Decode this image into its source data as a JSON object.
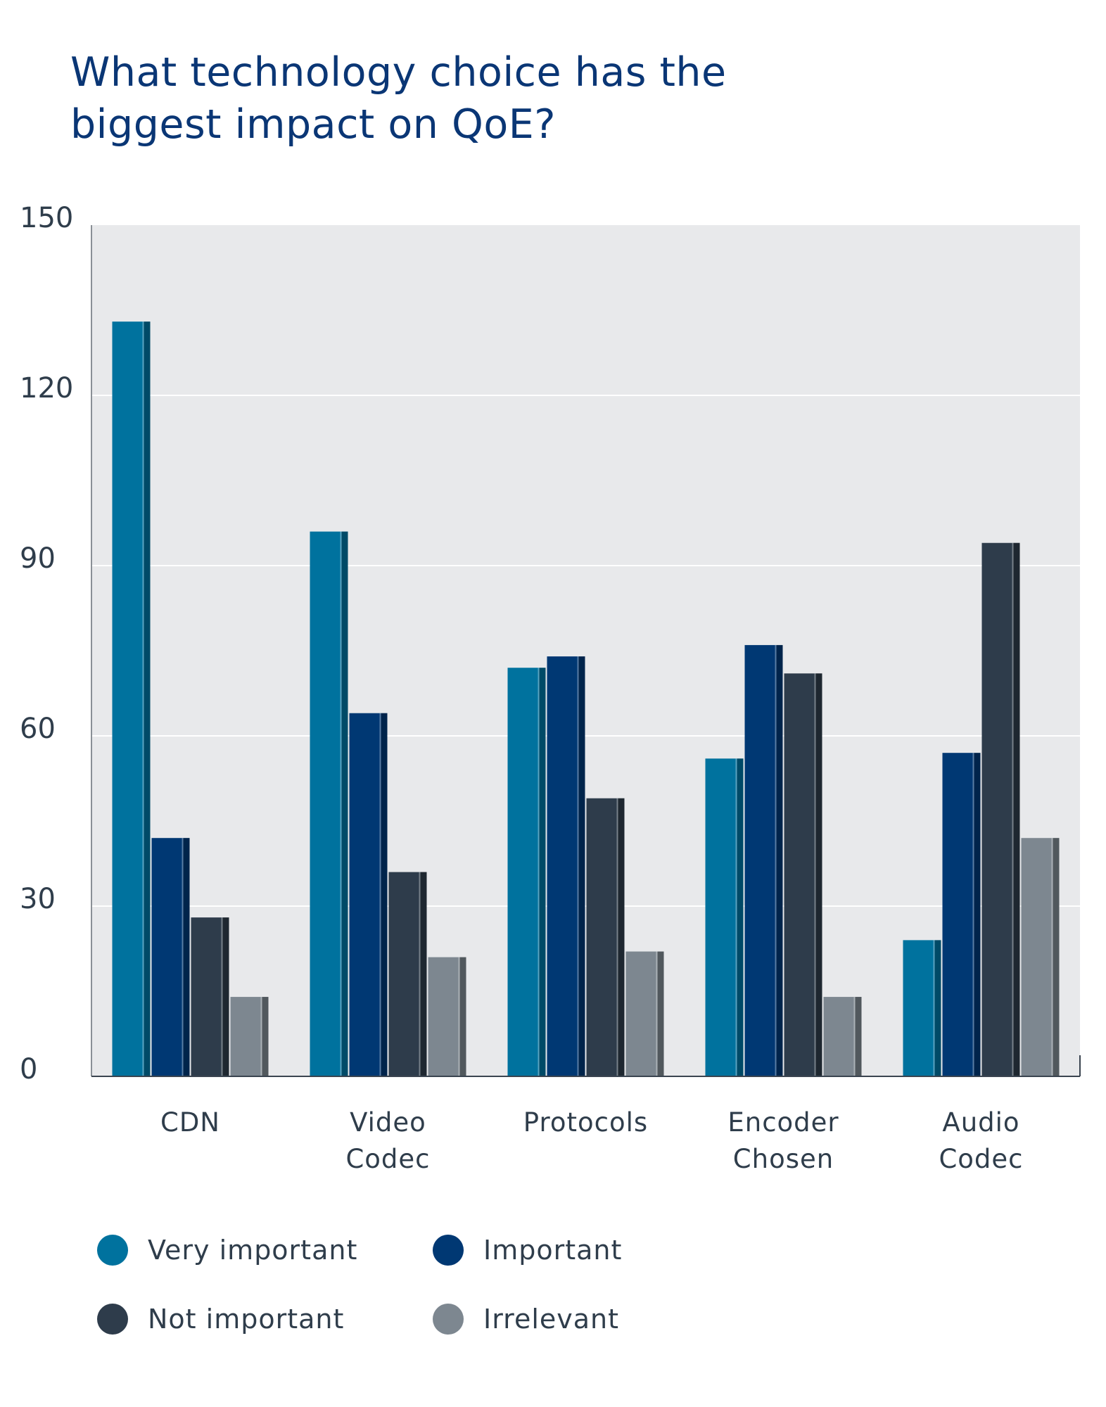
{
  "chart_data": {
    "type": "bar",
    "title": "What technology choice has the biggest impact on QoE?",
    "categories": [
      "CDN",
      "Video Codec",
      "Protocols",
      "Encoder Chosen",
      "Audio Codec"
    ],
    "category_lines": [
      [
        "CDN"
      ],
      [
        "Video",
        "Codec"
      ],
      [
        "Protocols"
      ],
      [
        "Encoder",
        "Chosen"
      ],
      [
        "Audio",
        "Codec"
      ]
    ],
    "series": [
      {
        "name": "Very important",
        "values": [
          133,
          96,
          72,
          56,
          24
        ],
        "color": "#00729e"
      },
      {
        "name": "Important",
        "values": [
          42,
          64,
          74,
          76,
          57
        ],
        "color": "#003873"
      },
      {
        "name": "Not important",
        "values": [
          28,
          36,
          49,
          71,
          94
        ],
        "color": "#2e3c4b"
      },
      {
        "name": "Irrelevant",
        "values": [
          14,
          21,
          22,
          14,
          42
        ],
        "color": "#7d8790"
      }
    ],
    "yticks": [
      0,
      30,
      60,
      90,
      120,
      150
    ],
    "ylim": [
      0,
      150
    ],
    "xlabel": "",
    "ylabel": "",
    "grid": true,
    "legend_position": "bottom"
  }
}
